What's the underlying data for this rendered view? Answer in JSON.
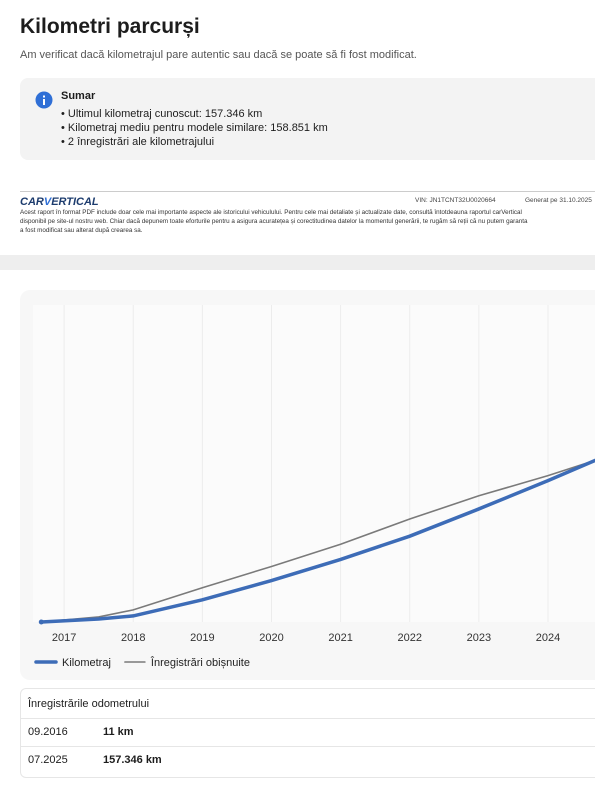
{
  "header": {
    "title": "Kilometri parcurși",
    "subtitle": "Am verificat dacă kilometrajul pare autentic sau dacă se poate să fi fost modificat."
  },
  "summary": {
    "title": "Sumar",
    "items": [
      "Ultimul kilometraj cunoscut: 157.346 km",
      "Kilometraj mediu pentru modele similare: 158.851 km",
      "2 înregistrări ale kilometrajului"
    ]
  },
  "report_footer": {
    "logo_left": "CAR",
    "logo_v": "V",
    "logo_right": "ERTICAL",
    "vin": "VIN: JN1TCNT32U0020664",
    "generated": "Generat pe  31.10.2025",
    "disclaimer": [
      "Acest raport în format PDF include doar cele mai importante aspecte ale istoricului vehiculului. Pentru cele mai detaliate și actualizate date, consultă întotdeauna raportul carVertical",
      "disponibil pe site-ul nostru web. Chiar dacă depunem toate eforturile pentru a asigura acuratețea și corectitudinea datelor la momentul generării, te rugăm să reții că nu putem garanta",
      "a fost modificat sau alterat după crearea sa."
    ]
  },
  "chart_data": {
    "type": "line",
    "xlim": [
      2016.55,
      2024.68
    ],
    "ylim": [
      0,
      270000
    ],
    "xticks": [
      2017,
      2018,
      2019,
      2020,
      2021,
      2022,
      2023,
      2024
    ],
    "grid": true,
    "series": [
      {
        "name": "Kilometraj",
        "color": "#3d6cb7",
        "x": [
          2016.67,
          2017.5,
          2018,
          2019,
          2020,
          2021,
          2022,
          2023,
          2024,
          2024.68
        ],
        "values": [
          11,
          2600,
          5200,
          18900,
          35300,
          53300,
          73100,
          96300,
          120400,
          137600
        ]
      },
      {
        "name": "Înregistrări obișnuite",
        "color": "#7a7a7a",
        "x": [
          2016.67,
          2017.5,
          2018,
          2019,
          2020,
          2021,
          2022,
          2023,
          2024,
          2024.68
        ],
        "values": [
          11,
          4300,
          10300,
          29200,
          47300,
          66200,
          87700,
          107500,
          124700,
          137600
        ]
      }
    ]
  },
  "table": {
    "title": "Înregistrările odometrului",
    "rows": [
      [
        "09.2016",
        "11 km"
      ],
      [
        "07.2025",
        "157.346 km"
      ]
    ]
  }
}
